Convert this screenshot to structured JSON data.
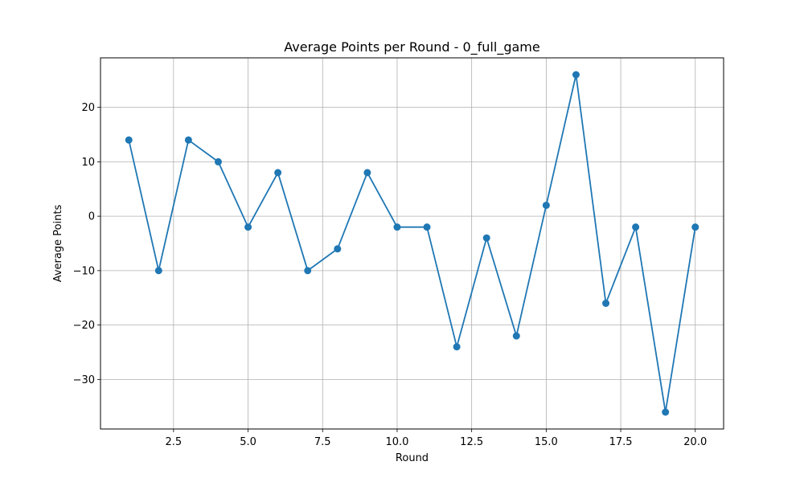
{
  "chart_data": {
    "type": "line",
    "title": "Average Points per Round - 0_full_game",
    "xlabel": "Round",
    "ylabel": "Average Points",
    "xlim": [
      0.05,
      20.95
    ],
    "ylim": [
      -39.1,
      29.1
    ],
    "xticks": [
      2.5,
      5.0,
      7.5,
      10.0,
      12.5,
      15.0,
      17.5,
      20.0
    ],
    "xtick_labels": [
      "2.5",
      "5.0",
      "7.5",
      "10.0",
      "12.5",
      "15.0",
      "17.5",
      "20.0"
    ],
    "yticks": [
      -30,
      -20,
      -10,
      0,
      10,
      20
    ],
    "ytick_labels": [
      "−30",
      "−20",
      "−10",
      "0",
      "10",
      "20"
    ],
    "grid": true,
    "color": "#1f77b4",
    "series": [
      {
        "x": [
          1,
          2,
          3,
          4,
          5,
          6,
          7,
          8,
          9,
          10,
          11,
          12,
          13,
          14,
          15,
          16,
          17,
          18,
          19,
          20
        ],
        "y": [
          14,
          -10,
          14,
          10,
          -2,
          8,
          -10,
          -6,
          8,
          -2,
          -2,
          -24,
          -4,
          -22,
          2,
          26,
          -16,
          -2,
          -36,
          -2
        ]
      }
    ]
  }
}
